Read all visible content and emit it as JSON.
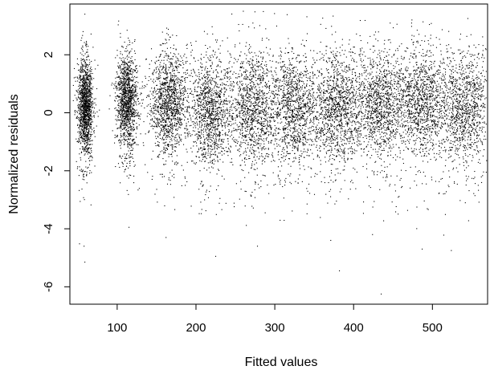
{
  "chart_data": {
    "type": "scatter",
    "title": "",
    "xlabel": "Fitted values",
    "ylabel": "Normalized residuals",
    "xlim": [
      40,
      570
    ],
    "ylim": [
      -6.6,
      3.75
    ],
    "xticks": [
      100,
      200,
      300,
      400,
      500
    ],
    "yticks": [
      -6,
      -4,
      -2,
      0,
      2
    ],
    "grid": false,
    "legend": "none",
    "point_color": "#000000",
    "clusters": [
      {
        "x_center": 60,
        "x_spread": 5,
        "y_center": 0.2,
        "y_spread": 0.9,
        "count": 1400
      },
      {
        "x_center": 112,
        "x_spread": 7,
        "y_center": 0.4,
        "y_spread": 0.85,
        "count": 1300
      },
      {
        "x_center": 165,
        "x_spread": 12,
        "y_center": 0.3,
        "y_spread": 0.9,
        "count": 1300
      },
      {
        "x_center": 218,
        "x_spread": 13,
        "y_center": 0.0,
        "y_spread": 1.0,
        "count": 1200
      },
      {
        "x_center": 272,
        "x_spread": 16,
        "y_center": 0.15,
        "y_spread": 1.05,
        "count": 1200
      },
      {
        "x_center": 326,
        "x_spread": 16,
        "y_center": 0.15,
        "y_spread": 1.0,
        "count": 1200
      },
      {
        "x_center": 379,
        "x_spread": 17,
        "y_center": 0.1,
        "y_spread": 1.05,
        "count": 1200
      },
      {
        "x_center": 431,
        "x_spread": 17,
        "y_center": 0.25,
        "y_spread": 1.0,
        "count": 1200
      },
      {
        "x_center": 486,
        "x_spread": 18,
        "y_center": 0.3,
        "y_spread": 1.0,
        "count": 1200
      },
      {
        "x_center": 543,
        "x_spread": 19,
        "y_center": 0.1,
        "y_spread": 1.0,
        "count": 1200
      }
    ],
    "outliers": [
      {
        "x": 58,
        "y": -4.6
      },
      {
        "x": 59,
        "y": -5.15
      },
      {
        "x": 115,
        "y": -3.95
      },
      {
        "x": 162,
        "y": -4.3
      },
      {
        "x": 225,
        "y": -4.95
      },
      {
        "x": 278,
        "y": -4.6
      },
      {
        "x": 371,
        "y": -4.4
      },
      {
        "x": 382,
        "y": -5.45
      },
      {
        "x": 424,
        "y": -4.2
      },
      {
        "x": 435,
        "y": -6.25
      },
      {
        "x": 487,
        "y": -4.7
      },
      {
        "x": 524,
        "y": -4.75
      },
      {
        "x": 59,
        "y": 3.4
      },
      {
        "x": 474,
        "y": 3.2
      },
      {
        "x": 545,
        "y": 3.25
      }
    ]
  }
}
